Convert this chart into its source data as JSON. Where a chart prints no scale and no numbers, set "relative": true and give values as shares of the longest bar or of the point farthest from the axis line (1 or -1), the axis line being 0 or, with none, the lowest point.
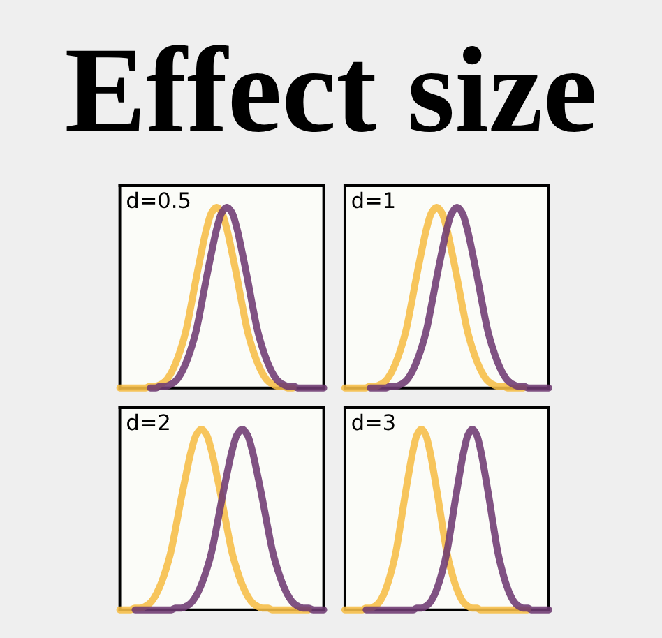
{
  "chart_data": [
    {
      "type": "line",
      "title": "Effect size",
      "relative": true,
      "annotations": [
        "d=0.5"
      ],
      "categories": [
        null,
        null,
        null,
        null,
        null,
        null,
        null,
        null,
        null,
        null,
        null,
        null,
        null,
        null,
        null,
        null,
        null,
        null,
        null,
        null,
        null,
        null,
        null,
        null,
        null,
        null,
        null,
        null,
        null,
        null,
        null,
        null,
        null,
        null,
        null,
        null,
        null,
        null,
        null,
        null,
        null
      ],
      "series": [
        {
          "color": "#f6bd45",
          "values": [
            0,
            0,
            0,
            0,
            0,
            0,
            0.01,
            0.01,
            0.02,
            0.04,
            0.08,
            0.14,
            0.22,
            0.32,
            0.46,
            0.61,
            0.75,
            0.88,
            0.97,
            1,
            0.97,
            0.88,
            0.75,
            0.61,
            0.46,
            0.32,
            0.22,
            0.14,
            0.08,
            0.04,
            0.02,
            0.01,
            0.01,
            0,
            0,
            null,
            null,
            null,
            null,
            null,
            null
          ]
        },
        {
          "color": "#6e3a72",
          "values": [
            null,
            null,
            null,
            null,
            null,
            null,
            0,
            0,
            0.01,
            0.01,
            0.02,
            0.04,
            0.08,
            0.14,
            0.22,
            0.32,
            0.46,
            0.61,
            0.75,
            0.88,
            0.97,
            1,
            0.97,
            0.88,
            0.75,
            0.61,
            0.46,
            0.32,
            0.22,
            0.14,
            0.08,
            0.04,
            0.02,
            0.01,
            0.01,
            0,
            0,
            0,
            0,
            0,
            0
          ]
        }
      ]
    },
    {
      "type": "line",
      "relative": true,
      "annotations": [
        "d=1"
      ],
      "categories": [
        null,
        null,
        null,
        null,
        null,
        null,
        null,
        null,
        null,
        null,
        null,
        null,
        null,
        null,
        null,
        null,
        null,
        null,
        null,
        null,
        null,
        null,
        null,
        null,
        null,
        null,
        null,
        null,
        null,
        null,
        null,
        null,
        null,
        null,
        null,
        null,
        null,
        null,
        null,
        null,
        null
      ],
      "series": [
        {
          "color": "#f6bd45",
          "values": [
            0,
            0,
            0,
            0,
            0,
            0.01,
            0.01,
            0.02,
            0.04,
            0.08,
            0.14,
            0.22,
            0.32,
            0.46,
            0.61,
            0.75,
            0.88,
            0.97,
            1,
            0.97,
            0.88,
            0.75,
            0.61,
            0.46,
            0.32,
            0.22,
            0.14,
            0.08,
            0.04,
            0.02,
            0.01,
            0.01,
            0,
            0,
            0,
            0,
            null,
            null,
            null,
            null,
            null
          ]
        },
        {
          "color": "#6e3a72",
          "values": [
            null,
            null,
            null,
            null,
            null,
            0,
            0,
            0,
            0,
            0.01,
            0.01,
            0.02,
            0.04,
            0.08,
            0.14,
            0.22,
            0.32,
            0.46,
            0.61,
            0.75,
            0.88,
            0.97,
            1,
            0.97,
            0.88,
            0.75,
            0.61,
            0.46,
            0.32,
            0.22,
            0.14,
            0.08,
            0.04,
            0.02,
            0.01,
            0.01,
            0,
            0,
            0,
            0,
            0
          ]
        }
      ]
    },
    {
      "type": "line",
      "relative": true,
      "annotations": [
        "d=2"
      ],
      "categories": [
        null,
        null,
        null,
        null,
        null,
        null,
        null,
        null,
        null,
        null,
        null,
        null,
        null,
        null,
        null,
        null,
        null,
        null,
        null,
        null,
        null,
        null,
        null,
        null,
        null,
        null,
        null,
        null,
        null,
        null,
        null,
        null,
        null,
        null,
        null,
        null,
        null,
        null,
        null,
        null,
        null
      ],
      "series": [
        {
          "color": "#f6bd45",
          "values": [
            0,
            0,
            0,
            0.01,
            0.01,
            0.02,
            0.04,
            0.08,
            0.14,
            0.22,
            0.32,
            0.46,
            0.61,
            0.75,
            0.88,
            0.97,
            1,
            0.97,
            0.88,
            0.75,
            0.61,
            0.46,
            0.32,
            0.22,
            0.14,
            0.08,
            0.04,
            0.02,
            0.01,
            0.01,
            0,
            0,
            0,
            0,
            0,
            0,
            0,
            0,
            null,
            null,
            null
          ]
        },
        {
          "color": "#6e3a72",
          "values": [
            null,
            null,
            null,
            0,
            0,
            0,
            0,
            0,
            0,
            0,
            0,
            0.01,
            0.01,
            0.02,
            0.04,
            0.08,
            0.14,
            0.22,
            0.32,
            0.46,
            0.61,
            0.75,
            0.88,
            0.97,
            1,
            0.97,
            0.88,
            0.75,
            0.61,
            0.46,
            0.32,
            0.22,
            0.14,
            0.08,
            0.04,
            0.02,
            0.01,
            0.01,
            0,
            0,
            0
          ]
        }
      ]
    },
    {
      "type": "line",
      "relative": true,
      "annotations": [
        "d=3"
      ],
      "categories": [
        null,
        null,
        null,
        null,
        null,
        null,
        null,
        null,
        null,
        null,
        null,
        null,
        null,
        null,
        null,
        null,
        null,
        null,
        null,
        null,
        null,
        null,
        null,
        null,
        null,
        null,
        null,
        null,
        null,
        null,
        null,
        null,
        null,
        null,
        null,
        null,
        null,
        null,
        null,
        null,
        null,
        null,
        null,
        null,
        null,
        null,
        null,
        null,
        null
      ],
      "series": [
        {
          "color": "#f6bd45",
          "values": [
            0,
            0,
            0,
            0,
            0,
            0.01,
            0.01,
            0.02,
            0.04,
            0.08,
            0.14,
            0.22,
            0.32,
            0.46,
            0.61,
            0.75,
            0.88,
            0.97,
            1,
            0.97,
            0.88,
            0.75,
            0.61,
            0.46,
            0.32,
            0.22,
            0.14,
            0.08,
            0.04,
            0.02,
            0.01,
            0.01,
            0,
            0,
            0,
            0,
            0,
            0,
            0,
            0,
            0,
            0,
            0,
            0,
            null,
            null,
            null,
            null,
            null
          ]
        },
        {
          "color": "#6e3a72",
          "values": [
            null,
            null,
            null,
            null,
            null,
            0,
            0,
            0,
            0,
            0,
            0,
            0,
            0,
            0,
            0,
            0,
            0,
            0.01,
            0.01,
            0.02,
            0.04,
            0.08,
            0.14,
            0.22,
            0.32,
            0.46,
            0.61,
            0.75,
            0.88,
            0.97,
            1,
            0.97,
            0.88,
            0.75,
            0.61,
            0.46,
            0.32,
            0.22,
            0.14,
            0.08,
            0.04,
            0.02,
            0.01,
            0.01,
            0,
            0,
            0,
            0,
            0
          ]
        }
      ]
    }
  ]
}
